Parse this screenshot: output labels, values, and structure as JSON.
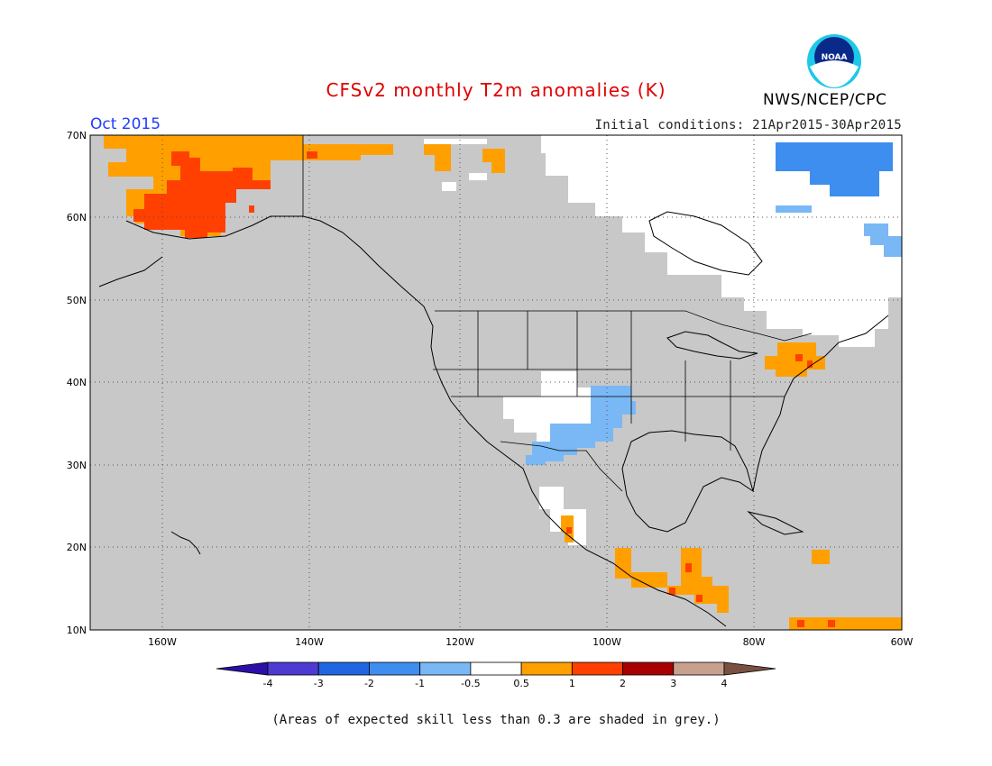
{
  "header": {
    "title": "CFSv2 monthly T2m anomalies (K)",
    "agency": "NWS/NCEP/CPC",
    "month": "Oct 2015",
    "initial_conditions": "Initial conditions: 21Apr2015-30Apr2015"
  },
  "logo": {
    "text": "NOAA"
  },
  "footer": {
    "note": "(Areas of expected skill less than 0.3 are shaded in grey.)"
  },
  "map": {
    "lon_range": [
      -172,
      -60
    ],
    "lat_range": [
      10,
      70
    ],
    "lat_ticks": [
      "70N",
      "60N",
      "50N",
      "40N",
      "30N",
      "20N",
      "10N"
    ],
    "lon_ticks": [
      "160W",
      "140W",
      "120W",
      "100W",
      "80W",
      "60W"
    ],
    "background_color": "#c8c8c8",
    "grid": true
  },
  "colorbar": {
    "labels": [
      "-4",
      "-3",
      "-2",
      "-1",
      "-0.5",
      "0.5",
      "1",
      "2",
      "3",
      "4"
    ],
    "colors": [
      "#2b0fa8",
      "#4d3ad0",
      "#1f66e0",
      "#3e8ef0",
      "#7ab8f5",
      "#ffffff",
      "#ffa000",
      "#ff4000",
      "#a80000",
      "#c8a090",
      "#7a5040"
    ]
  },
  "anomaly_regions": [
    {
      "name": "alaska-warm",
      "level": "0.5 to 1",
      "color": "#ffa000"
    },
    {
      "name": "alaska-hot",
      "level": "1 to 2",
      "color": "#ff4000"
    },
    {
      "name": "canada-neutral",
      "level": "-0.5 to 0.5",
      "color": "#ffffff"
    },
    {
      "name": "northeast-canada-cool",
      "level": "-1 to -2",
      "color": "#3e8ef0"
    },
    {
      "name": "southwest-us-cool",
      "level": "-0.5 to -1",
      "color": "#7ab8f5"
    },
    {
      "name": "northeast-us-warm",
      "level": "0.5 to 1",
      "color": "#ffa000"
    },
    {
      "name": "central-america-warm",
      "level": "0.5 to 1",
      "color": "#ffa000"
    }
  ]
}
